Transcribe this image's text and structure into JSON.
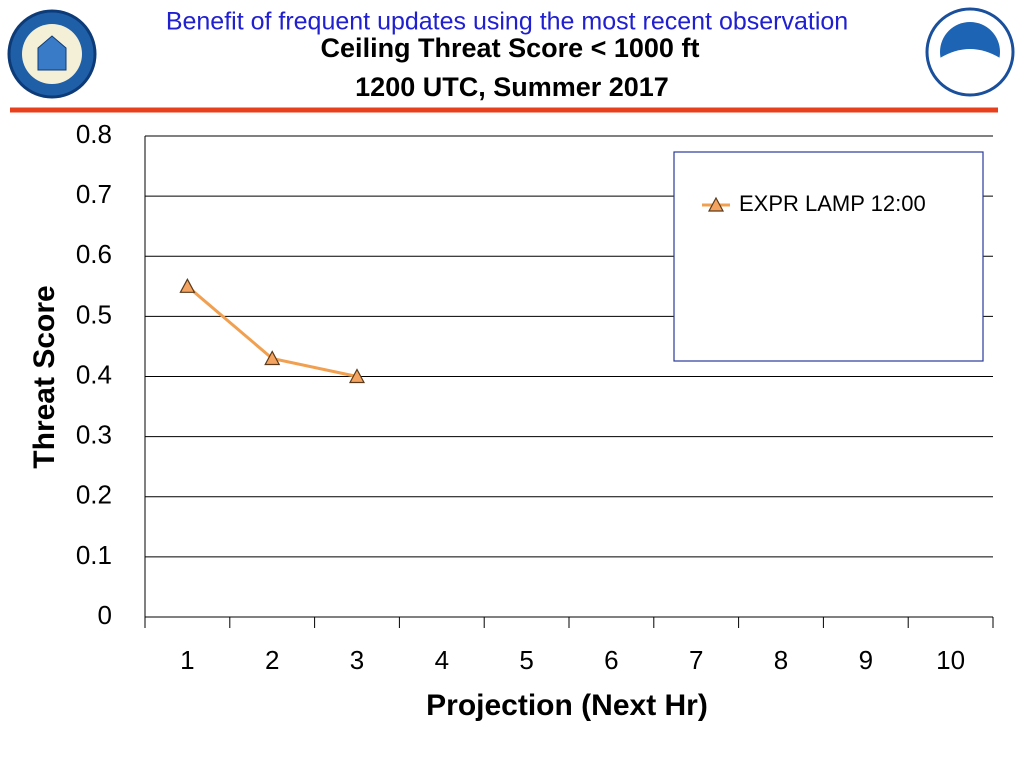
{
  "header": "Benefit of frequent updates using the most recent observation",
  "chart_data": {
    "type": "line",
    "title": "Ceiling Threat Score < 1000 ft",
    "subtitle": "1200 UTC, Summer 2017",
    "xlabel": "Projection (Next Hr)",
    "ylabel": "Threat Score",
    "categories": [
      1,
      2,
      3,
      4,
      5,
      6,
      7,
      8,
      9,
      10
    ],
    "series": [
      {
        "name": "EXPR LAMP 12:00",
        "color": "#f0a050",
        "values": [
          0.55,
          0.43,
          0.4,
          null,
          null,
          null,
          null,
          null,
          null,
          null
        ]
      }
    ],
    "ylim": [
      0,
      0.8
    ],
    "yticks": [
      0,
      0.1,
      0.2,
      0.3,
      0.4,
      0.5,
      0.6,
      0.7,
      0.8
    ],
    "grid": true,
    "legend": "upper right"
  }
}
